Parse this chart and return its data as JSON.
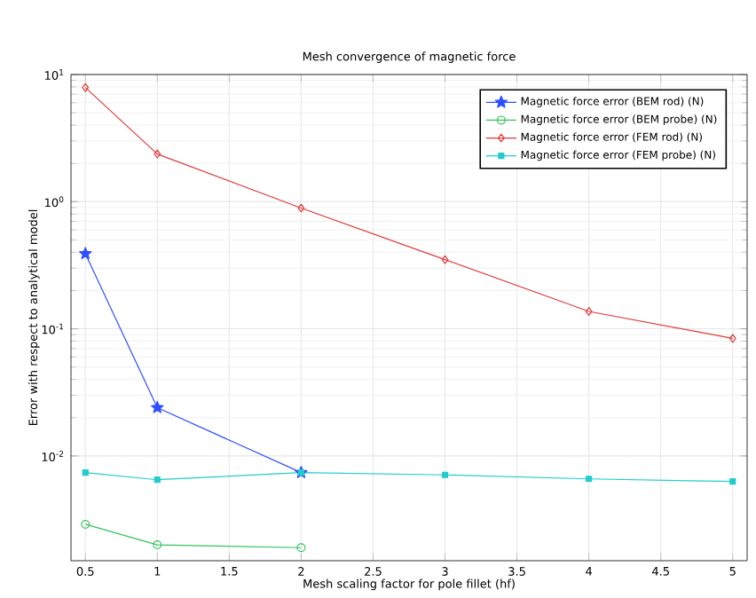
{
  "chart_data": {
    "type": "line",
    "title": "Mesh convergence of magnetic force",
    "xlabel": "Mesh scaling factor for pole fillet (hf)",
    "ylabel": "Error with respect to analytical model",
    "log": "y",
    "grid": true,
    "legend": "top right",
    "xlim": [
      0.4,
      5.1
    ],
    "ylim": [
      0.0015,
      10
    ],
    "xticks": [
      0.5,
      1,
      1.5,
      2,
      2.5,
      3,
      3.5,
      4,
      4.5,
      5
    ],
    "yticks": [
      {
        "value": 0.01,
        "label": "10$^{-2}$"
      },
      {
        "value": 0.1,
        "label": "10$^{-1}$"
      },
      {
        "value": 1,
        "label": "10$^{0}$"
      },
      {
        "value": 10,
        "label": "10$^{1}$"
      }
    ],
    "series": [
      {
        "name": "Magnetic force error (BEM rod) (N)",
        "color": "#2f4fff",
        "marker": "star",
        "x": [
          0.5,
          1,
          2
        ],
        "values": [
          0.39,
          0.024,
          0.0074
        ]
      },
      {
        "name": "Magnetic force error (BEM probe) (N)",
        "color": "#33c45a",
        "marker": "circle",
        "x": [
          0.5,
          1,
          2
        ],
        "values": [
          0.0029,
          0.002,
          0.0019
        ]
      },
      {
        "name": "Magnetic force error (FEM rod) (N)",
        "color": "#e03a3a",
        "marker": "diamond",
        "x": [
          0.5,
          1,
          2,
          3,
          4,
          5
        ],
        "values": [
          7.9,
          2.37,
          0.89,
          0.35,
          0.137,
          0.084
        ]
      },
      {
        "name": "Magnetic force error (FEM probe) (N)",
        "color": "#22cccc",
        "marker": "square",
        "x": [
          0.5,
          1,
          2,
          3,
          4,
          5
        ],
        "values": [
          0.0074,
          0.0065,
          0.0074,
          0.0071,
          0.0066,
          0.0063
        ]
      }
    ]
  }
}
